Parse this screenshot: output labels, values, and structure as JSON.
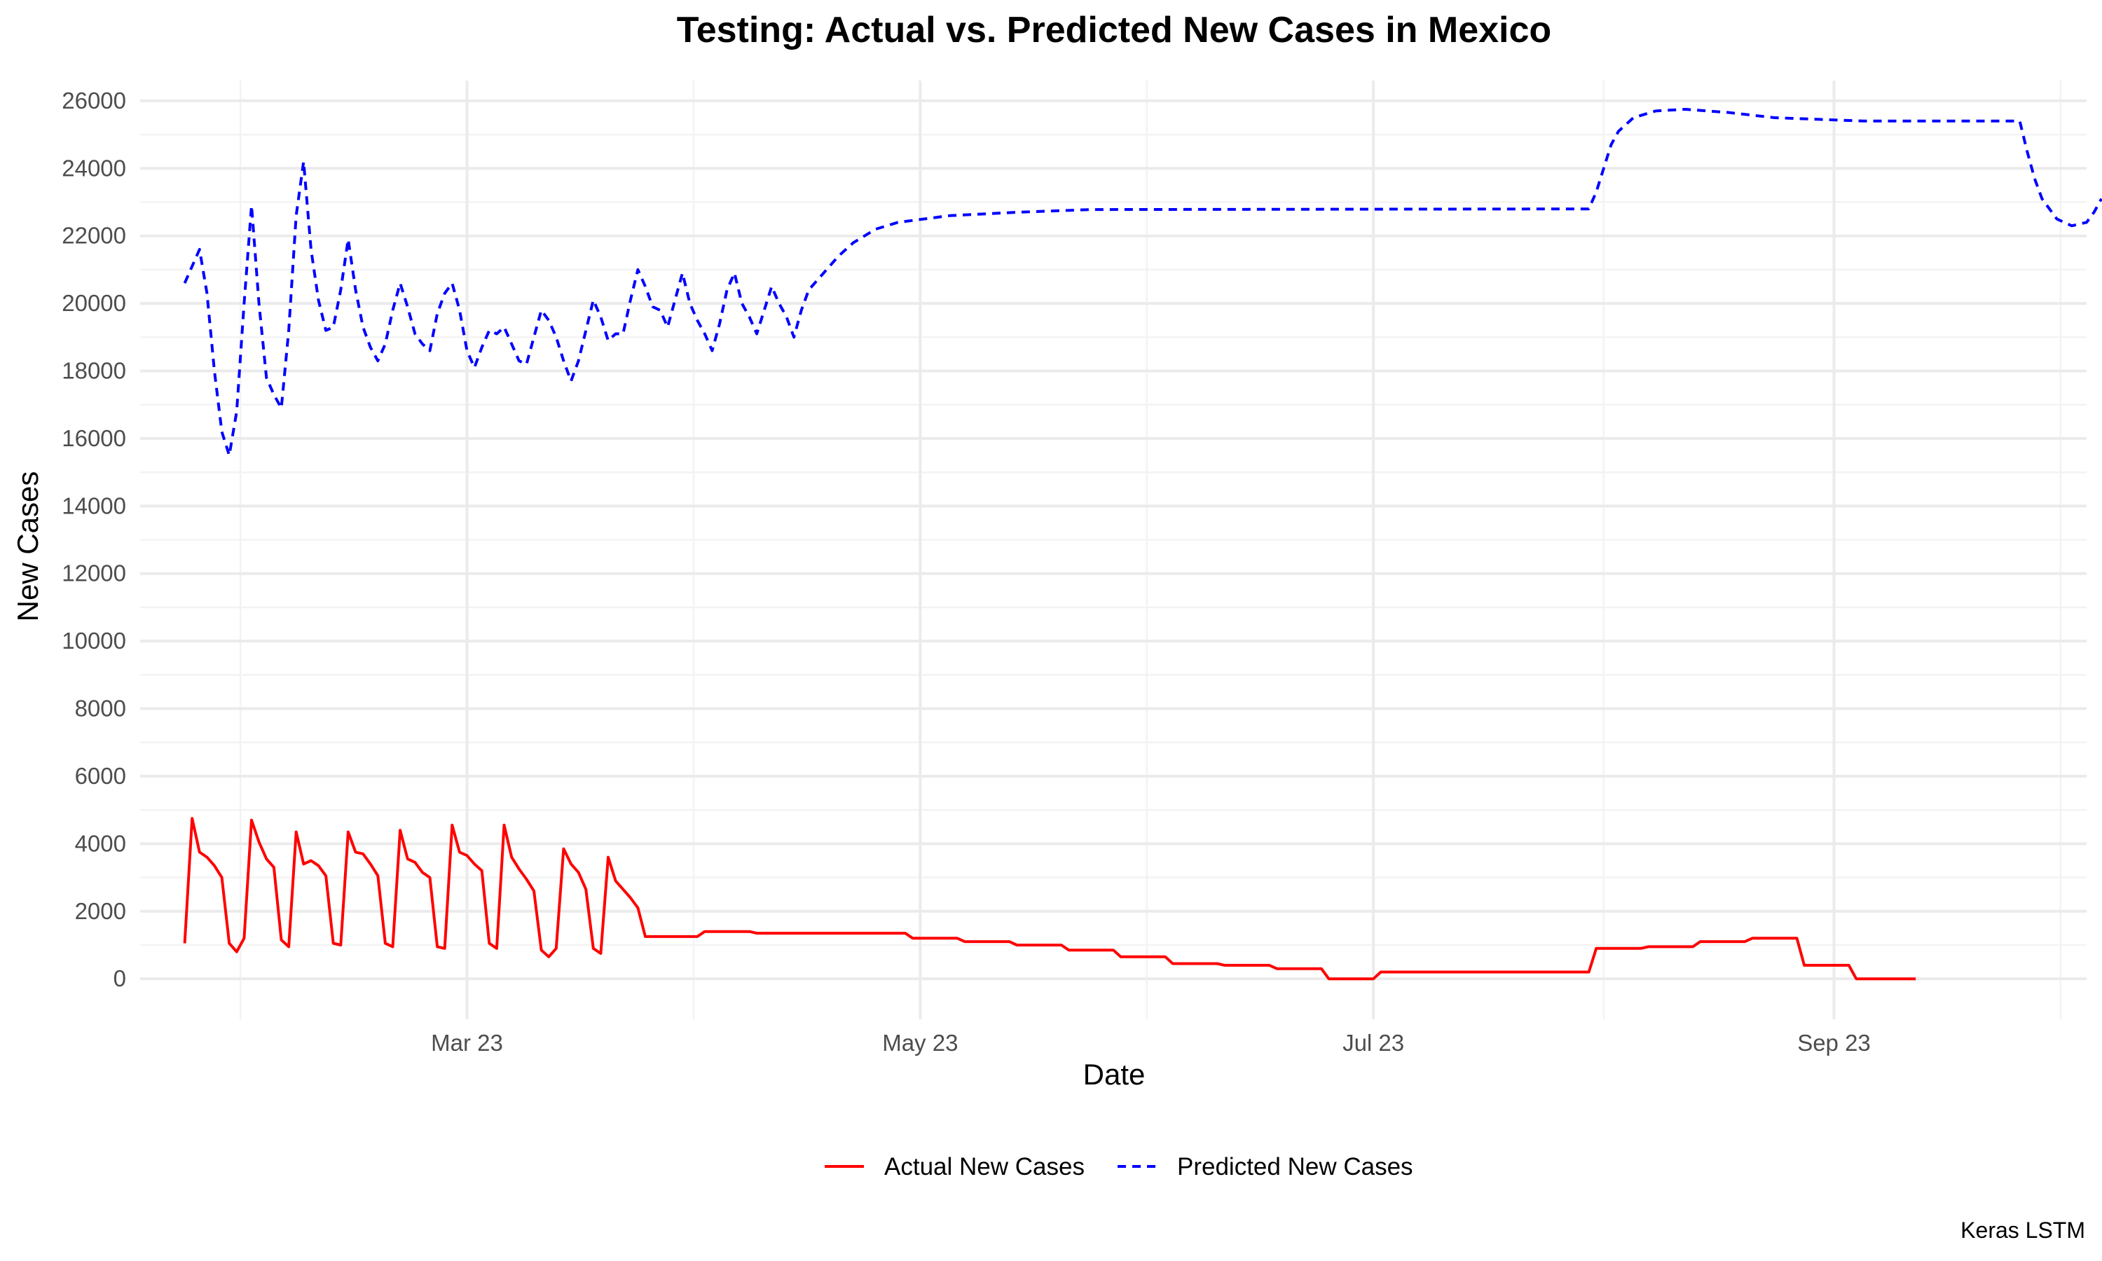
{
  "chart_data": {
    "type": "line",
    "title": "Testing: Actual vs. Predicted New Cases in Mexico",
    "xlabel": "Date",
    "ylabel": "New Cases",
    "caption": "Keras LSTM",
    "x_ticks": [
      {
        "date": "2023-03-01",
        "label": "Mar 23"
      },
      {
        "date": "2023-05-01",
        "label": "May 23"
      },
      {
        "date": "2023-07-01",
        "label": "Jul 23"
      },
      {
        "date": "2023-09-01",
        "label": "Sep 23"
      }
    ],
    "xlim": [
      "2023-01-16",
      "2023-10-05"
    ],
    "y_ticks": [
      0,
      2000,
      4000,
      6000,
      8000,
      10000,
      12000,
      14000,
      16000,
      18000,
      20000,
      22000,
      24000,
      26000
    ],
    "ylim": [
      -1200,
      26600
    ],
    "grid": true,
    "legend_position": "bottom",
    "series": [
      {
        "name": "Actual New Cases",
        "color": "#ff0000",
        "style": "solid",
        "points": [
          [
            "2023-01-22",
            1050
          ],
          [
            "2023-01-23",
            4750
          ],
          [
            "2023-01-24",
            3750
          ],
          [
            "2023-01-25",
            3600
          ],
          [
            "2023-01-26",
            3350
          ],
          [
            "2023-01-27",
            3000
          ],
          [
            "2023-01-28",
            1050
          ],
          [
            "2023-01-29",
            800
          ],
          [
            "2023-01-30",
            1200
          ],
          [
            "2023-01-31",
            4700
          ],
          [
            "2023-02-01",
            4050
          ],
          [
            "2023-02-02",
            3550
          ],
          [
            "2023-02-03",
            3300
          ],
          [
            "2023-02-04",
            1150
          ],
          [
            "2023-02-05",
            950
          ],
          [
            "2023-02-06",
            4350
          ],
          [
            "2023-02-07",
            3400
          ],
          [
            "2023-02-08",
            3500
          ],
          [
            "2023-02-09",
            3350
          ],
          [
            "2023-02-10",
            3050
          ],
          [
            "2023-02-11",
            1050
          ],
          [
            "2023-02-12",
            1000
          ],
          [
            "2023-02-13",
            4350
          ],
          [
            "2023-02-14",
            3750
          ],
          [
            "2023-02-15",
            3700
          ],
          [
            "2023-02-16",
            3400
          ],
          [
            "2023-02-17",
            3050
          ],
          [
            "2023-02-18",
            1050
          ],
          [
            "2023-02-19",
            950
          ],
          [
            "2023-02-20",
            4400
          ],
          [
            "2023-02-21",
            3550
          ],
          [
            "2023-02-22",
            3450
          ],
          [
            "2023-02-23",
            3150
          ],
          [
            "2023-02-24",
            3000
          ],
          [
            "2023-02-25",
            950
          ],
          [
            "2023-02-26",
            900
          ],
          [
            "2023-02-27",
            4550
          ],
          [
            "2023-02-28",
            3750
          ],
          [
            "2023-03-01",
            3650
          ],
          [
            "2023-03-02",
            3400
          ],
          [
            "2023-03-03",
            3200
          ],
          [
            "2023-03-04",
            1050
          ],
          [
            "2023-03-05",
            900
          ],
          [
            "2023-03-06",
            4550
          ],
          [
            "2023-03-07",
            3600
          ],
          [
            "2023-03-08",
            3250
          ],
          [
            "2023-03-09",
            2950
          ],
          [
            "2023-03-10",
            2600
          ],
          [
            "2023-03-11",
            850
          ],
          [
            "2023-03-12",
            650
          ],
          [
            "2023-03-13",
            900
          ],
          [
            "2023-03-14",
            3850
          ],
          [
            "2023-03-15",
            3400
          ],
          [
            "2023-03-16",
            3150
          ],
          [
            "2023-03-17",
            2650
          ],
          [
            "2023-03-18",
            900
          ],
          [
            "2023-03-19",
            750
          ],
          [
            "2023-03-20",
            3600
          ],
          [
            "2023-03-21",
            2900
          ],
          [
            "2023-03-22",
            2650
          ],
          [
            "2023-03-23",
            2400
          ],
          [
            "2023-03-24",
            2100
          ],
          [
            "2023-03-25",
            1250
          ],
          [
            "2023-04-01",
            1250
          ],
          [
            "2023-04-02",
            1400
          ],
          [
            "2023-04-08",
            1400
          ],
          [
            "2023-04-09",
            1350
          ],
          [
            "2023-04-29",
            1350
          ],
          [
            "2023-04-30",
            1200
          ],
          [
            "2023-05-06",
            1200
          ],
          [
            "2023-05-07",
            1100
          ],
          [
            "2023-05-13",
            1100
          ],
          [
            "2023-05-14",
            1000
          ],
          [
            "2023-05-20",
            1000
          ],
          [
            "2023-05-21",
            850
          ],
          [
            "2023-05-27",
            850
          ],
          [
            "2023-05-28",
            650
          ],
          [
            "2023-06-03",
            650
          ],
          [
            "2023-06-04",
            450
          ],
          [
            "2023-06-10",
            450
          ],
          [
            "2023-06-11",
            400
          ],
          [
            "2023-06-17",
            400
          ],
          [
            "2023-06-18",
            300
          ],
          [
            "2023-06-24",
            300
          ],
          [
            "2023-06-25",
            0
          ],
          [
            "2023-07-01",
            0
          ],
          [
            "2023-07-02",
            200
          ],
          [
            "2023-07-30",
            200
          ],
          [
            "2023-07-31",
            900
          ],
          [
            "2023-08-06",
            900
          ],
          [
            "2023-08-07",
            950
          ],
          [
            "2023-08-13",
            950
          ],
          [
            "2023-08-14",
            1100
          ],
          [
            "2023-08-20",
            1100
          ],
          [
            "2023-08-21",
            1200
          ],
          [
            "2023-08-27",
            1200
          ],
          [
            "2023-08-28",
            400
          ],
          [
            "2023-09-03",
            400
          ],
          [
            "2023-09-04",
            0
          ],
          [
            "2023-09-12",
            0
          ]
        ]
      },
      {
        "name": "Predicted New Cases",
        "color": "#0000ff",
        "style": "dashed",
        "points": [
          [
            "2023-01-22",
            20600
          ],
          [
            "2023-01-24",
            21600
          ],
          [
            "2023-01-25",
            20300
          ],
          [
            "2023-01-26",
            18000
          ],
          [
            "2023-01-27",
            16200
          ],
          [
            "2023-01-28",
            15500
          ],
          [
            "2023-01-29",
            16800
          ],
          [
            "2023-01-30",
            20000
          ],
          [
            "2023-01-31",
            22900
          ],
          [
            "2023-02-01",
            20000
          ],
          [
            "2023-02-02",
            17800
          ],
          [
            "2023-02-03",
            17300
          ],
          [
            "2023-02-04",
            16900
          ],
          [
            "2023-02-05",
            19200
          ],
          [
            "2023-02-06",
            22600
          ],
          [
            "2023-02-07",
            24200
          ],
          [
            "2023-02-08",
            21600
          ],
          [
            "2023-02-09",
            20100
          ],
          [
            "2023-02-10",
            19200
          ],
          [
            "2023-02-11",
            19300
          ],
          [
            "2023-02-12",
            20400
          ],
          [
            "2023-02-13",
            21900
          ],
          [
            "2023-02-14",
            20400
          ],
          [
            "2023-02-15",
            19300
          ],
          [
            "2023-02-16",
            18700
          ],
          [
            "2023-02-17",
            18300
          ],
          [
            "2023-02-18",
            18800
          ],
          [
            "2023-02-19",
            19800
          ],
          [
            "2023-02-20",
            20600
          ],
          [
            "2023-02-21",
            19900
          ],
          [
            "2023-02-22",
            19100
          ],
          [
            "2023-02-23",
            18800
          ],
          [
            "2023-02-24",
            18600
          ],
          [
            "2023-02-25",
            19700
          ],
          [
            "2023-02-26",
            20300
          ],
          [
            "2023-02-27",
            20600
          ],
          [
            "2023-02-28",
            19800
          ],
          [
            "2023-03-01",
            18600
          ],
          [
            "2023-03-02",
            18100
          ],
          [
            "2023-03-03",
            18700
          ],
          [
            "2023-03-04",
            19200
          ],
          [
            "2023-03-05",
            19100
          ],
          [
            "2023-03-06",
            19300
          ],
          [
            "2023-03-07",
            18800
          ],
          [
            "2023-03-08",
            18300
          ],
          [
            "2023-03-09",
            18200
          ],
          [
            "2023-03-10",
            19000
          ],
          [
            "2023-03-11",
            19800
          ],
          [
            "2023-03-12",
            19500
          ],
          [
            "2023-03-13",
            19000
          ],
          [
            "2023-03-14",
            18300
          ],
          [
            "2023-03-15",
            17700
          ],
          [
            "2023-03-16",
            18300
          ],
          [
            "2023-03-17",
            19200
          ],
          [
            "2023-03-18",
            20100
          ],
          [
            "2023-03-19",
            19600
          ],
          [
            "2023-03-20",
            18900
          ],
          [
            "2023-03-21",
            19100
          ],
          [
            "2023-03-22",
            19100
          ],
          [
            "2023-03-23",
            20100
          ],
          [
            "2023-03-24",
            21000
          ],
          [
            "2023-03-25",
            20500
          ],
          [
            "2023-03-26",
            19900
          ],
          [
            "2023-03-27",
            19800
          ],
          [
            "2023-03-28",
            19300
          ],
          [
            "2023-03-29",
            20100
          ],
          [
            "2023-03-30",
            20900
          ],
          [
            "2023-03-31",
            20000
          ],
          [
            "2023-04-01",
            19500
          ],
          [
            "2023-04-02",
            19100
          ],
          [
            "2023-04-03",
            18600
          ],
          [
            "2023-04-04",
            19400
          ],
          [
            "2023-04-05",
            20400
          ],
          [
            "2023-04-06",
            20900
          ],
          [
            "2023-04-07",
            20000
          ],
          [
            "2023-04-08",
            19600
          ],
          [
            "2023-04-09",
            19100
          ],
          [
            "2023-04-10",
            19800
          ],
          [
            "2023-04-11",
            20500
          ],
          [
            "2023-04-12",
            20000
          ],
          [
            "2023-04-13",
            19600
          ],
          [
            "2023-04-14",
            19000
          ],
          [
            "2023-04-15",
            19800
          ],
          [
            "2023-04-16",
            20400
          ],
          [
            "2023-04-18",
            20900
          ],
          [
            "2023-04-20",
            21400
          ],
          [
            "2023-04-22",
            21800
          ],
          [
            "2023-04-25",
            22200
          ],
          [
            "2023-04-28",
            22400
          ],
          [
            "2023-05-05",
            22600
          ],
          [
            "2023-05-14",
            22700
          ],
          [
            "2023-05-24",
            22780
          ],
          [
            "2023-07-30",
            22800
          ],
          [
            "2023-07-31",
            23300
          ],
          [
            "2023-08-01",
            24000
          ],
          [
            "2023-08-02",
            24700
          ],
          [
            "2023-08-03",
            25100
          ],
          [
            "2023-08-05",
            25500
          ],
          [
            "2023-08-08",
            25700
          ],
          [
            "2023-08-12",
            25750
          ],
          [
            "2023-08-18",
            25650
          ],
          [
            "2023-08-24",
            25500
          ],
          [
            "2023-08-30",
            25450
          ],
          [
            "2023-09-05",
            25400
          ],
          [
            "2023-09-20",
            25400
          ],
          [
            "2023-09-26",
            25400
          ],
          [
            "2023-09-27",
            24500
          ],
          [
            "2023-09-28",
            23700
          ],
          [
            "2023-09-29",
            23100
          ],
          [
            "2023-09-30",
            22800
          ],
          [
            "2023-10-01",
            22500
          ],
          [
            "2023-10-03",
            22300
          ],
          [
            "2023-10-05",
            22400
          ],
          [
            "2023-10-06",
            22700
          ],
          [
            "2023-10-07",
            23100
          ]
        ]
      }
    ]
  }
}
